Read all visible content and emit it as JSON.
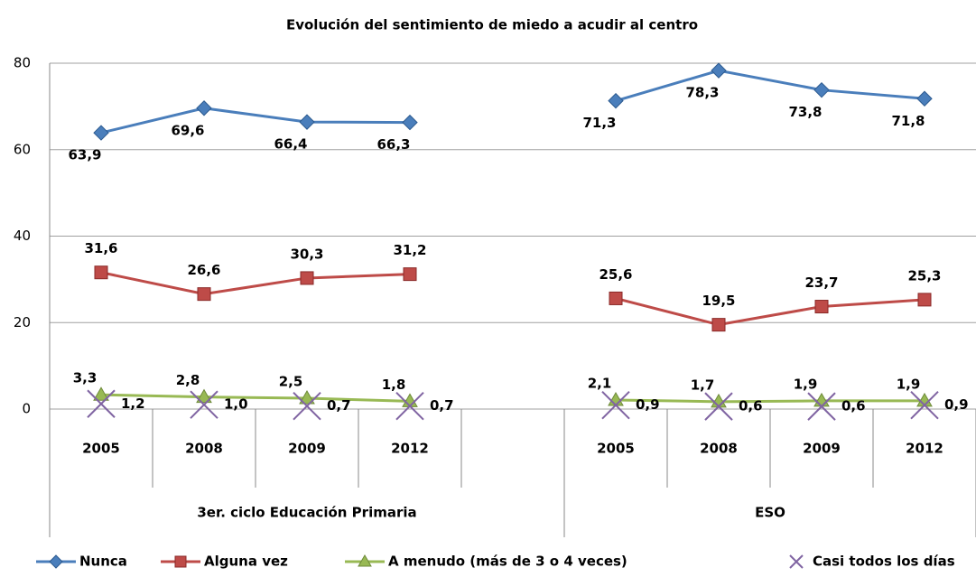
{
  "chart_data": {
    "type": "line",
    "title": "Evolución del sentimiento de miedo a acudir al centro",
    "groups": [
      {
        "name": "3er. ciclo Educación Primaria",
        "categories": [
          "2005",
          "2008",
          "2009",
          "2012",
          null
        ]
      },
      {
        "name": "ESO",
        "categories": [
          "2005",
          "2008",
          "2009",
          "2012"
        ]
      }
    ],
    "series": [
      {
        "name": "Nunca",
        "color": "#4a7ebb",
        "marker": "diamond",
        "line": true,
        "values": [
          63.9,
          69.6,
          66.4,
          66.3,
          null,
          71.3,
          78.3,
          73.8,
          71.8
        ],
        "value_labels": [
          "63,9",
          "69,6",
          "66,4",
          "66,3",
          null,
          "71,3",
          "78,3",
          "73,8",
          "71,8"
        ]
      },
      {
        "name": "Alguna vez",
        "color": "#be4b48",
        "marker": "square",
        "line": true,
        "values": [
          31.6,
          26.6,
          30.3,
          31.2,
          null,
          25.6,
          19.5,
          23.7,
          25.3
        ],
        "value_labels": [
          "31,6",
          "26,6",
          "30,3",
          "31,2",
          null,
          "25,6",
          "19,5",
          "23,7",
          "25,3"
        ]
      },
      {
        "name": "A menudo (más de 3 o 4 veces)",
        "color": "#98b954",
        "marker": "triangle",
        "line": true,
        "values": [
          3.3,
          2.8,
          2.5,
          1.8,
          null,
          2.1,
          1.7,
          1.9,
          1.9
        ],
        "value_labels": [
          "3,3",
          "2,8",
          "2,5",
          "1,8",
          null,
          "2,1",
          "1,7",
          "1,9",
          "1,9"
        ]
      },
      {
        "name": "Casi todos los días",
        "color": "#8064a2",
        "marker": "x",
        "line": false,
        "values": [
          1.2,
          1.0,
          0.7,
          0.7,
          null,
          0.9,
          0.6,
          0.6,
          0.9
        ],
        "value_labels": [
          "1,2",
          "1,0",
          "0,7",
          "0,7",
          null,
          "0,9",
          "0,6",
          "0,6",
          "0,9"
        ]
      }
    ],
    "ylim": [
      0,
      80
    ],
    "yticks": [
      0,
      20,
      40,
      60,
      80
    ],
    "grid": true,
    "legend": "bottom"
  }
}
